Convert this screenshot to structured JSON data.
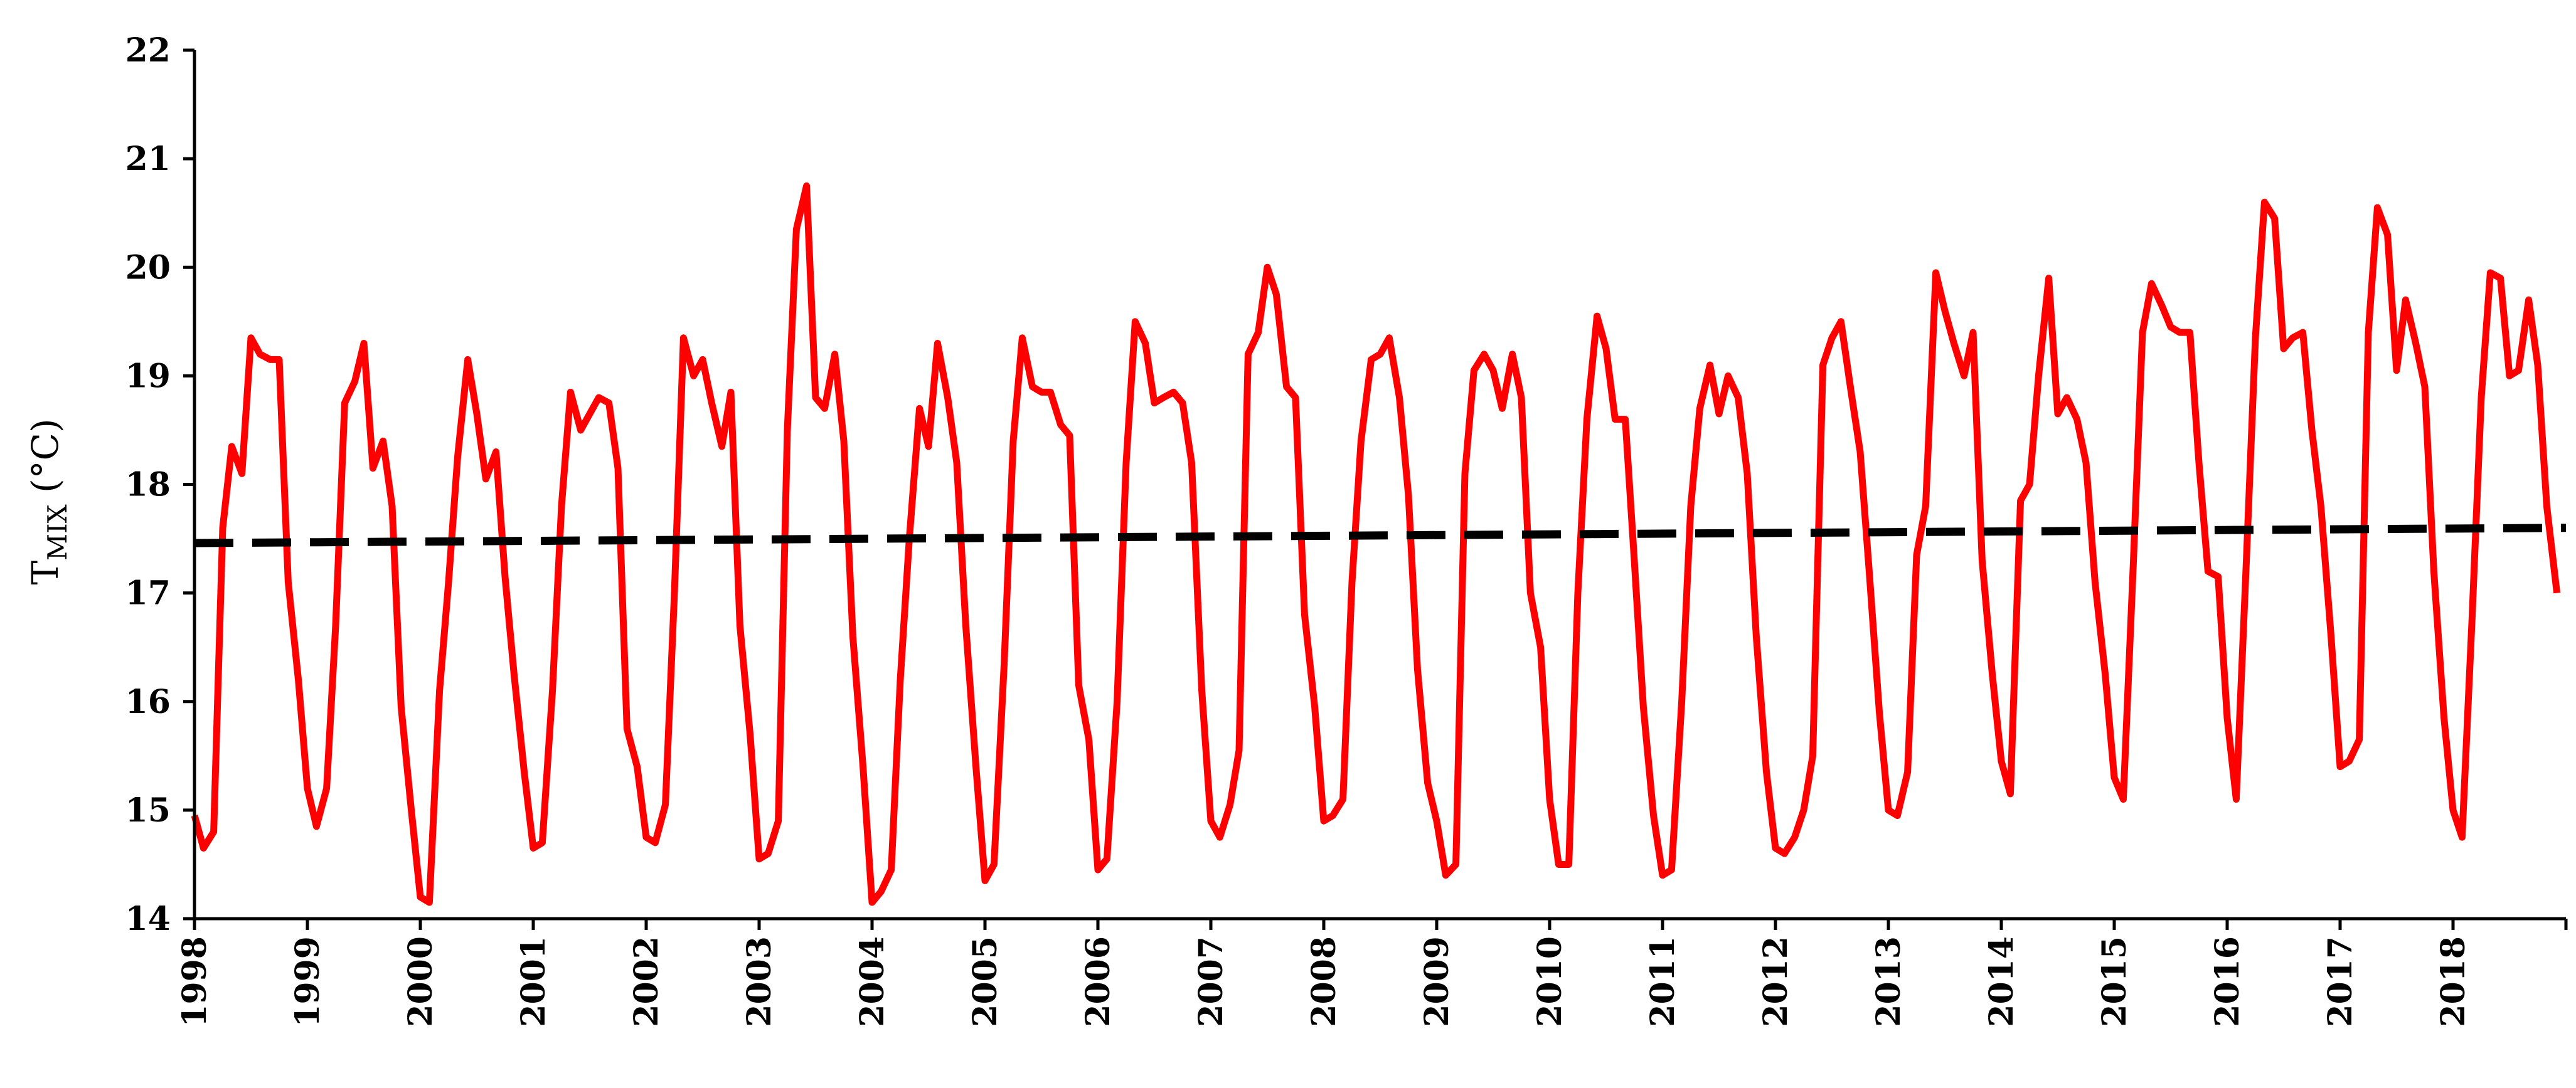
{
  "chart_data": {
    "type": "line",
    "title": "",
    "xlabel": "",
    "ylabel": {
      "main": "T",
      "sub": "MIX",
      "suffix": " (°C)"
    },
    "xlim": [
      1998.0,
      2019.0
    ],
    "ylim": [
      14,
      22
    ],
    "y_ticks": [
      14,
      15,
      16,
      17,
      18,
      19,
      20,
      21,
      22
    ],
    "x_ticks": [
      "1998",
      "1999",
      "2000",
      "2001",
      "2002",
      "2003",
      "2004",
      "2005",
      "2006",
      "2007",
      "2008",
      "2009",
      "2010",
      "2011",
      "2012",
      "2013",
      "2014",
      "2015",
      "2016",
      "2017",
      "2018"
    ],
    "grid": false,
    "legend": "none",
    "series": [
      {
        "style": "solid",
        "color": "#ff0000",
        "points": [
          [
            1998.0,
            14.95
          ],
          [
            1998.08,
            14.65
          ],
          [
            1998.17,
            14.8
          ],
          [
            1998.25,
            17.6
          ],
          [
            1998.33,
            18.35
          ],
          [
            1998.42,
            18.1
          ],
          [
            1998.5,
            19.35
          ],
          [
            1998.58,
            19.2
          ],
          [
            1998.67,
            19.15
          ],
          [
            1998.75,
            19.15
          ],
          [
            1998.83,
            17.1
          ],
          [
            1998.92,
            16.2
          ],
          [
            1999.0,
            15.2
          ],
          [
            1999.08,
            14.85
          ],
          [
            1999.17,
            15.2
          ],
          [
            1999.25,
            16.7
          ],
          [
            1999.33,
            18.75
          ],
          [
            1999.42,
            18.95
          ],
          [
            1999.5,
            19.3
          ],
          [
            1999.58,
            18.15
          ],
          [
            1999.67,
            18.4
          ],
          [
            1999.75,
            17.8
          ],
          [
            1999.83,
            15.95
          ],
          [
            1999.92,
            15.0
          ],
          [
            2000.0,
            14.2
          ],
          [
            2000.08,
            14.15
          ],
          [
            2000.17,
            16.1
          ],
          [
            2000.25,
            17.1
          ],
          [
            2000.33,
            18.25
          ],
          [
            2000.42,
            19.15
          ],
          [
            2000.5,
            18.65
          ],
          [
            2000.58,
            18.05
          ],
          [
            2000.67,
            18.3
          ],
          [
            2000.75,
            17.15
          ],
          [
            2000.83,
            16.25
          ],
          [
            2000.92,
            15.35
          ],
          [
            2001.0,
            14.65
          ],
          [
            2001.08,
            14.7
          ],
          [
            2001.17,
            16.1
          ],
          [
            2001.25,
            17.8
          ],
          [
            2001.33,
            18.85
          ],
          [
            2001.42,
            18.5
          ],
          [
            2001.5,
            18.65
          ],
          [
            2001.58,
            18.8
          ],
          [
            2001.67,
            18.75
          ],
          [
            2001.75,
            18.15
          ],
          [
            2001.83,
            15.75
          ],
          [
            2001.92,
            15.4
          ],
          [
            2002.0,
            14.75
          ],
          [
            2002.08,
            14.7
          ],
          [
            2002.17,
            15.05
          ],
          [
            2002.25,
            17.0
          ],
          [
            2002.33,
            19.35
          ],
          [
            2002.42,
            19.0
          ],
          [
            2002.5,
            19.15
          ],
          [
            2002.58,
            18.75
          ],
          [
            2002.67,
            18.35
          ],
          [
            2002.75,
            18.85
          ],
          [
            2002.83,
            16.7
          ],
          [
            2002.92,
            15.7
          ],
          [
            2003.0,
            14.55
          ],
          [
            2003.08,
            14.6
          ],
          [
            2003.17,
            14.9
          ],
          [
            2003.25,
            18.5
          ],
          [
            2003.33,
            20.35
          ],
          [
            2003.42,
            20.75
          ],
          [
            2003.5,
            18.8
          ],
          [
            2003.58,
            18.7
          ],
          [
            2003.67,
            19.2
          ],
          [
            2003.75,
            18.4
          ],
          [
            2003.83,
            16.6
          ],
          [
            2003.92,
            15.4
          ],
          [
            2004.0,
            14.15
          ],
          [
            2004.08,
            14.25
          ],
          [
            2004.17,
            14.45
          ],
          [
            2004.25,
            16.2
          ],
          [
            2004.33,
            17.5
          ],
          [
            2004.42,
            18.7
          ],
          [
            2004.5,
            18.35
          ],
          [
            2004.58,
            19.3
          ],
          [
            2004.67,
            18.8
          ],
          [
            2004.75,
            18.2
          ],
          [
            2004.83,
            16.7
          ],
          [
            2004.92,
            15.4
          ],
          [
            2005.0,
            14.35
          ],
          [
            2005.08,
            14.5
          ],
          [
            2005.17,
            16.35
          ],
          [
            2005.25,
            18.4
          ],
          [
            2005.33,
            19.35
          ],
          [
            2005.42,
            18.9
          ],
          [
            2005.5,
            18.85
          ],
          [
            2005.58,
            18.85
          ],
          [
            2005.67,
            18.55
          ],
          [
            2005.75,
            18.45
          ],
          [
            2005.83,
            16.15
          ],
          [
            2005.92,
            15.65
          ],
          [
            2006.0,
            14.45
          ],
          [
            2006.08,
            14.55
          ],
          [
            2006.17,
            16.0
          ],
          [
            2006.25,
            18.2
          ],
          [
            2006.33,
            19.5
          ],
          [
            2006.42,
            19.3
          ],
          [
            2006.5,
            18.75
          ],
          [
            2006.58,
            18.8
          ],
          [
            2006.67,
            18.85
          ],
          [
            2006.75,
            18.75
          ],
          [
            2006.83,
            18.2
          ],
          [
            2006.92,
            16.1
          ],
          [
            2007.0,
            14.9
          ],
          [
            2007.08,
            14.75
          ],
          [
            2007.17,
            15.05
          ],
          [
            2007.25,
            15.55
          ],
          [
            2007.33,
            19.2
          ],
          [
            2007.42,
            19.4
          ],
          [
            2007.5,
            20.0
          ],
          [
            2007.58,
            19.75
          ],
          [
            2007.67,
            18.9
          ],
          [
            2007.75,
            18.8
          ],
          [
            2007.83,
            16.8
          ],
          [
            2007.92,
            15.95
          ],
          [
            2008.0,
            14.9
          ],
          [
            2008.08,
            14.95
          ],
          [
            2008.17,
            15.1
          ],
          [
            2008.25,
            17.1
          ],
          [
            2008.33,
            18.4
          ],
          [
            2008.42,
            19.15
          ],
          [
            2008.5,
            19.2
          ],
          [
            2008.58,
            19.35
          ],
          [
            2008.67,
            18.8
          ],
          [
            2008.75,
            17.9
          ],
          [
            2008.83,
            16.3
          ],
          [
            2008.92,
            15.25
          ],
          [
            2009.0,
            14.9
          ],
          [
            2009.08,
            14.4
          ],
          [
            2009.17,
            14.5
          ],
          [
            2009.25,
            18.1
          ],
          [
            2009.33,
            19.05
          ],
          [
            2009.42,
            19.2
          ],
          [
            2009.5,
            19.05
          ],
          [
            2009.58,
            18.7
          ],
          [
            2009.67,
            19.2
          ],
          [
            2009.75,
            18.8
          ],
          [
            2009.83,
            17.0
          ],
          [
            2009.92,
            16.5
          ],
          [
            2010.0,
            15.1
          ],
          [
            2010.08,
            14.5
          ],
          [
            2010.17,
            14.5
          ],
          [
            2010.25,
            17.0
          ],
          [
            2010.33,
            18.6
          ],
          [
            2010.42,
            19.55
          ],
          [
            2010.5,
            19.25
          ],
          [
            2010.58,
            18.6
          ],
          [
            2010.67,
            18.6
          ],
          [
            2010.75,
            17.3
          ],
          [
            2010.83,
            15.95
          ],
          [
            2010.92,
            14.95
          ],
          [
            2011.0,
            14.4
          ],
          [
            2011.08,
            14.45
          ],
          [
            2011.17,
            16.0
          ],
          [
            2011.25,
            17.8
          ],
          [
            2011.33,
            18.7
          ],
          [
            2011.42,
            19.1
          ],
          [
            2011.5,
            18.65
          ],
          [
            2011.58,
            19.0
          ],
          [
            2011.67,
            18.8
          ],
          [
            2011.75,
            18.1
          ],
          [
            2011.83,
            16.6
          ],
          [
            2011.92,
            15.35
          ],
          [
            2012.0,
            14.65
          ],
          [
            2012.08,
            14.6
          ],
          [
            2012.17,
            14.75
          ],
          [
            2012.25,
            15.0
          ],
          [
            2012.33,
            15.5
          ],
          [
            2012.42,
            19.1
          ],
          [
            2012.5,
            19.35
          ],
          [
            2012.58,
            19.5
          ],
          [
            2012.67,
            18.85
          ],
          [
            2012.75,
            18.3
          ],
          [
            2012.83,
            17.2
          ],
          [
            2012.92,
            15.9
          ],
          [
            2013.0,
            15.0
          ],
          [
            2013.08,
            14.95
          ],
          [
            2013.17,
            15.35
          ],
          [
            2013.25,
            17.35
          ],
          [
            2013.33,
            17.8
          ],
          [
            2013.42,
            19.95
          ],
          [
            2013.5,
            19.6
          ],
          [
            2013.58,
            19.3
          ],
          [
            2013.67,
            19.0
          ],
          [
            2013.75,
            19.4
          ],
          [
            2013.83,
            17.3
          ],
          [
            2013.92,
            16.25
          ],
          [
            2014.0,
            15.45
          ],
          [
            2014.08,
            15.15
          ],
          [
            2014.17,
            17.85
          ],
          [
            2014.25,
            18.0
          ],
          [
            2014.33,
            19.0
          ],
          [
            2014.42,
            19.9
          ],
          [
            2014.5,
            18.65
          ],
          [
            2014.58,
            18.8
          ],
          [
            2014.67,
            18.6
          ],
          [
            2014.75,
            18.2
          ],
          [
            2014.83,
            17.1
          ],
          [
            2014.92,
            16.25
          ],
          [
            2015.0,
            15.3
          ],
          [
            2015.08,
            15.1
          ],
          [
            2015.17,
            17.3
          ],
          [
            2015.25,
            19.4
          ],
          [
            2015.33,
            19.85
          ],
          [
            2015.42,
            19.65
          ],
          [
            2015.5,
            19.45
          ],
          [
            2015.58,
            19.4
          ],
          [
            2015.67,
            19.4
          ],
          [
            2015.75,
            18.2
          ],
          [
            2015.83,
            17.2
          ],
          [
            2015.92,
            17.15
          ],
          [
            2016.0,
            15.85
          ],
          [
            2016.08,
            15.1
          ],
          [
            2016.17,
            17.3
          ],
          [
            2016.25,
            19.35
          ],
          [
            2016.33,
            20.6
          ],
          [
            2016.42,
            20.45
          ],
          [
            2016.5,
            19.25
          ],
          [
            2016.58,
            19.35
          ],
          [
            2016.67,
            19.4
          ],
          [
            2016.75,
            18.5
          ],
          [
            2016.83,
            17.8
          ],
          [
            2016.92,
            16.6
          ],
          [
            2017.0,
            15.4
          ],
          [
            2017.08,
            15.45
          ],
          [
            2017.17,
            15.65
          ],
          [
            2017.25,
            19.4
          ],
          [
            2017.33,
            20.55
          ],
          [
            2017.42,
            20.3
          ],
          [
            2017.5,
            19.05
          ],
          [
            2017.58,
            19.7
          ],
          [
            2017.67,
            19.3
          ],
          [
            2017.75,
            18.9
          ],
          [
            2017.83,
            17.2
          ],
          [
            2017.92,
            15.85
          ],
          [
            2018.0,
            15.0
          ],
          [
            2018.08,
            14.75
          ],
          [
            2018.17,
            16.8
          ],
          [
            2018.25,
            18.8
          ],
          [
            2018.33,
            19.95
          ],
          [
            2018.42,
            19.9
          ],
          [
            2018.5,
            19.0
          ],
          [
            2018.58,
            19.05
          ],
          [
            2018.67,
            19.7
          ],
          [
            2018.75,
            19.1
          ],
          [
            2018.83,
            17.8
          ],
          [
            2018.92,
            17.0
          ]
        ]
      },
      {
        "style": "dashed",
        "color": "#000000",
        "points": [
          [
            1998.0,
            17.46
          ],
          [
            2019.0,
            17.6
          ]
        ]
      }
    ]
  }
}
